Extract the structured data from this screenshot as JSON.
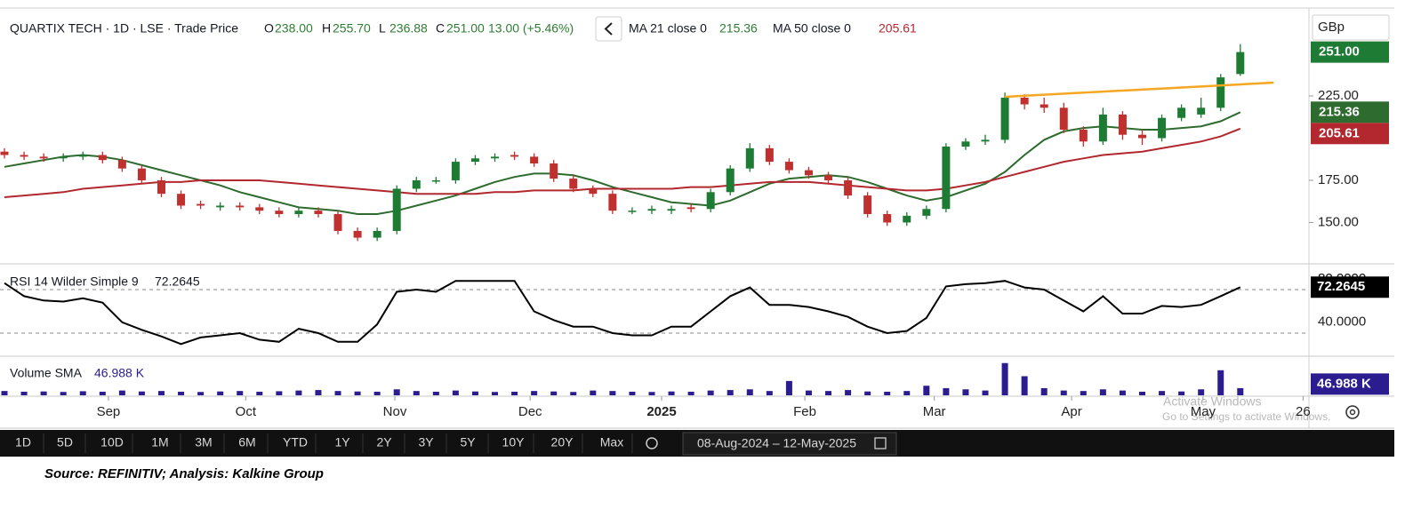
{
  "chart_data": [
    {
      "type": "candlestick",
      "title": "QUARTIX TECH · 1D · LSE · Trade Price",
      "ohlc": [
        {
          "key": "O",
          "value": "238.00"
        },
        {
          "key": "H",
          "value": "255.70"
        },
        {
          "key": "L",
          "value": "236.88"
        },
        {
          "key": "C",
          "value": "251.00"
        }
      ],
      "change": "13.00 (+5.46%)",
      "last_label": "251.00",
      "currency": "GBp",
      "up_color": "#1e7b34",
      "down_color": "#c0302e",
      "open": [
        192,
        190,
        189,
        188,
        189,
        190,
        187,
        182,
        175,
        167,
        161,
        159,
        160,
        159,
        157,
        155,
        157,
        155,
        145,
        141,
        145,
        170,
        175,
        175,
        186,
        188,
        190,
        189,
        185,
        176,
        170,
        167,
        157,
        157,
        157,
        159,
        158,
        168,
        182,
        194,
        186,
        181,
        178,
        175,
        166,
        155,
        150,
        154,
        158,
        195,
        198,
        199,
        224,
        220,
        218,
        205,
        198,
        214,
        202,
        200,
        212,
        214,
        218,
        238
      ],
      "high": [
        194,
        192,
        191,
        191,
        192,
        192,
        189,
        184,
        177,
        169,
        163,
        162,
        162,
        161,
        159,
        159,
        159,
        157,
        147,
        147,
        172,
        177,
        177,
        188,
        190,
        191,
        192,
        191,
        187,
        178,
        172,
        169,
        159,
        160,
        160,
        161,
        170,
        184,
        197,
        196,
        188,
        183,
        180,
        177,
        168,
        157,
        156,
        160,
        197,
        200,
        202,
        227,
        226,
        224,
        221,
        207,
        218,
        216,
        205,
        214,
        220,
        224,
        238,
        255.7
      ],
      "low": [
        188,
        187,
        186,
        186,
        187,
        185,
        180,
        173,
        165,
        158,
        158,
        157,
        157,
        155,
        153,
        153,
        153,
        143,
        139,
        139,
        143,
        168,
        173,
        173,
        184,
        186,
        187,
        183,
        174,
        168,
        165,
        155,
        155,
        155,
        155,
        156,
        156,
        166,
        180,
        184,
        179,
        176,
        173,
        164,
        153,
        148,
        148,
        152,
        156,
        193,
        196,
        197,
        217,
        215,
        203,
        195,
        196,
        199,
        196,
        198,
        210,
        212,
        216,
        236.88
      ],
      "close": [
        190,
        189,
        188,
        189,
        190,
        187,
        182,
        175,
        167,
        160,
        160,
        160,
        159,
        157,
        155,
        157,
        155,
        145,
        141,
        145,
        170,
        175,
        175,
        186,
        188,
        189,
        189,
        185,
        176,
        170,
        167,
        157,
        157,
        158,
        158,
        158,
        168,
        182,
        194,
        186,
        181,
        178,
        175,
        166,
        155,
        150,
        154,
        158,
        195,
        198,
        199,
        224,
        220,
        218,
        205,
        198,
        214,
        202,
        200,
        212,
        218,
        218,
        236,
        251
      ],
      "series": [
        {
          "name": "MA 21 close 0",
          "color": "#2e6b2e",
          "value_label": "215.36",
          "values": [
            183,
            185,
            187,
            189,
            190,
            189,
            187,
            184,
            181,
            178,
            175,
            172,
            168,
            165,
            162,
            159,
            158,
            157,
            155,
            155,
            157,
            160,
            163,
            166,
            170,
            174,
            177,
            179,
            179,
            178,
            175,
            171,
            168,
            165,
            162,
            161,
            160,
            163,
            168,
            173,
            176,
            177,
            178,
            177,
            174,
            170,
            166,
            163,
            165,
            169,
            173,
            180,
            190,
            199,
            204,
            206,
            207,
            206,
            205,
            205,
            206,
            207,
            210,
            215.36
          ]
        },
        {
          "name": "MA 50 close 0",
          "color": "#b2282e",
          "value_label": "205.61",
          "values": [
            165,
            166,
            167,
            168,
            170,
            171,
            172,
            173,
            174,
            174,
            175,
            175,
            175,
            175,
            174,
            173,
            172,
            171,
            170,
            169,
            168,
            167,
            167,
            167,
            167,
            168,
            168,
            169,
            169,
            169,
            170,
            170,
            170,
            170,
            170,
            171,
            171,
            172,
            173,
            174,
            174,
            174,
            173,
            172,
            171,
            170,
            169,
            169,
            170,
            172,
            174,
            177,
            180,
            183,
            186,
            188,
            190,
            191,
            192,
            194,
            196,
            198,
            201,
            205.61
          ]
        }
      ],
      "trendline": {
        "color": "#f5a623",
        "points": [
          [
            51,
            224.5
          ],
          [
            64.7,
            232.9
          ]
        ]
      },
      "xlim": [
        -0.227,
        66.5
      ],
      "xticks": [
        {
          "value": 5.3,
          "label": "Sep"
        },
        {
          "value": 12.3,
          "label": "Oct"
        },
        {
          "value": 19.9,
          "label": "Nov"
        },
        {
          "value": 26.8,
          "label": "Dec"
        },
        {
          "value": 33.5,
          "label": "2025"
        },
        {
          "value": 40.8,
          "label": "Feb"
        },
        {
          "value": 47.4,
          "label": "Mar"
        },
        {
          "value": 54.4,
          "label": "Apr"
        },
        {
          "value": 61.1,
          "label": "May"
        },
        {
          "value": 66.2,
          "label": "26"
        }
      ],
      "ylim": [
        125.5,
        276.6
      ],
      "yticks": [
        {
          "value": 150,
          "label": "150.00"
        },
        {
          "value": 175,
          "label": "175.00"
        },
        {
          "value": 225,
          "label": "225.00"
        }
      ]
    },
    {
      "type": "line",
      "series": [
        {
          "name": "RSI 14 Wilder Simple 9",
          "color": "#000000",
          "values": [
            76,
            64,
            60,
            59,
            62,
            58,
            40,
            33,
            27,
            20,
            26,
            28,
            30,
            24,
            22,
            34,
            30,
            22,
            22,
            38,
            68,
            70,
            68,
            78,
            78,
            78,
            78,
            50,
            42,
            36,
            36,
            30,
            28,
            28,
            36,
            36,
            50,
            64,
            72,
            56,
            56,
            54,
            50,
            45,
            36,
            30,
            32,
            44,
            73,
            75,
            76,
            78,
            72,
            70,
            60,
            50,
            64,
            48,
            48,
            55,
            54,
            56,
            64,
            72.2645
          ]
        }
      ],
      "levels": [
        70,
        30
      ],
      "ylim": [
        9.6,
        92.9
      ],
      "yticks": [
        {
          "value": 80,
          "label": "80.0000"
        },
        {
          "value": 40,
          "label": "40.0000"
        }
      ]
    },
    {
      "type": "bar",
      "title": "Volume SMA",
      "color": "#2b1c8f",
      "values": [
        18,
        15,
        16,
        14,
        17,
        15,
        20,
        16,
        18,
        15,
        14,
        16,
        18,
        15,
        17,
        20,
        22,
        18,
        16,
        15,
        25,
        18,
        15,
        20,
        16,
        14,
        15,
        18,
        16,
        14,
        20,
        18,
        15,
        14,
        16,
        15,
        20,
        22,
        25,
        18,
        60,
        20,
        18,
        22,
        16,
        15,
        18,
        40,
        30,
        25,
        20,
        135,
        80,
        30,
        20,
        18,
        25,
        20,
        15,
        18,
        16,
        25,
        105,
        30
      ],
      "sma": 46.988,
      "sma_label": "46.988 K",
      "ylim": [
        0,
        160
      ]
    }
  ],
  "toolbar": {
    "ranges": [
      "1D",
      "5D",
      "10D",
      "1M",
      "3M",
      "6M",
      "YTD",
      "1Y",
      "2Y",
      "3Y",
      "5Y",
      "10Y",
      "20Y",
      "Max"
    ],
    "date_range": "08-Aug-2024  –  12-May-2025"
  },
  "watermark": {
    "title": "Activate Windows",
    "subtitle": "Go to Settings to activate Windows."
  },
  "footer": "Source: REFINITIV; Analysis: Kalkine Group"
}
